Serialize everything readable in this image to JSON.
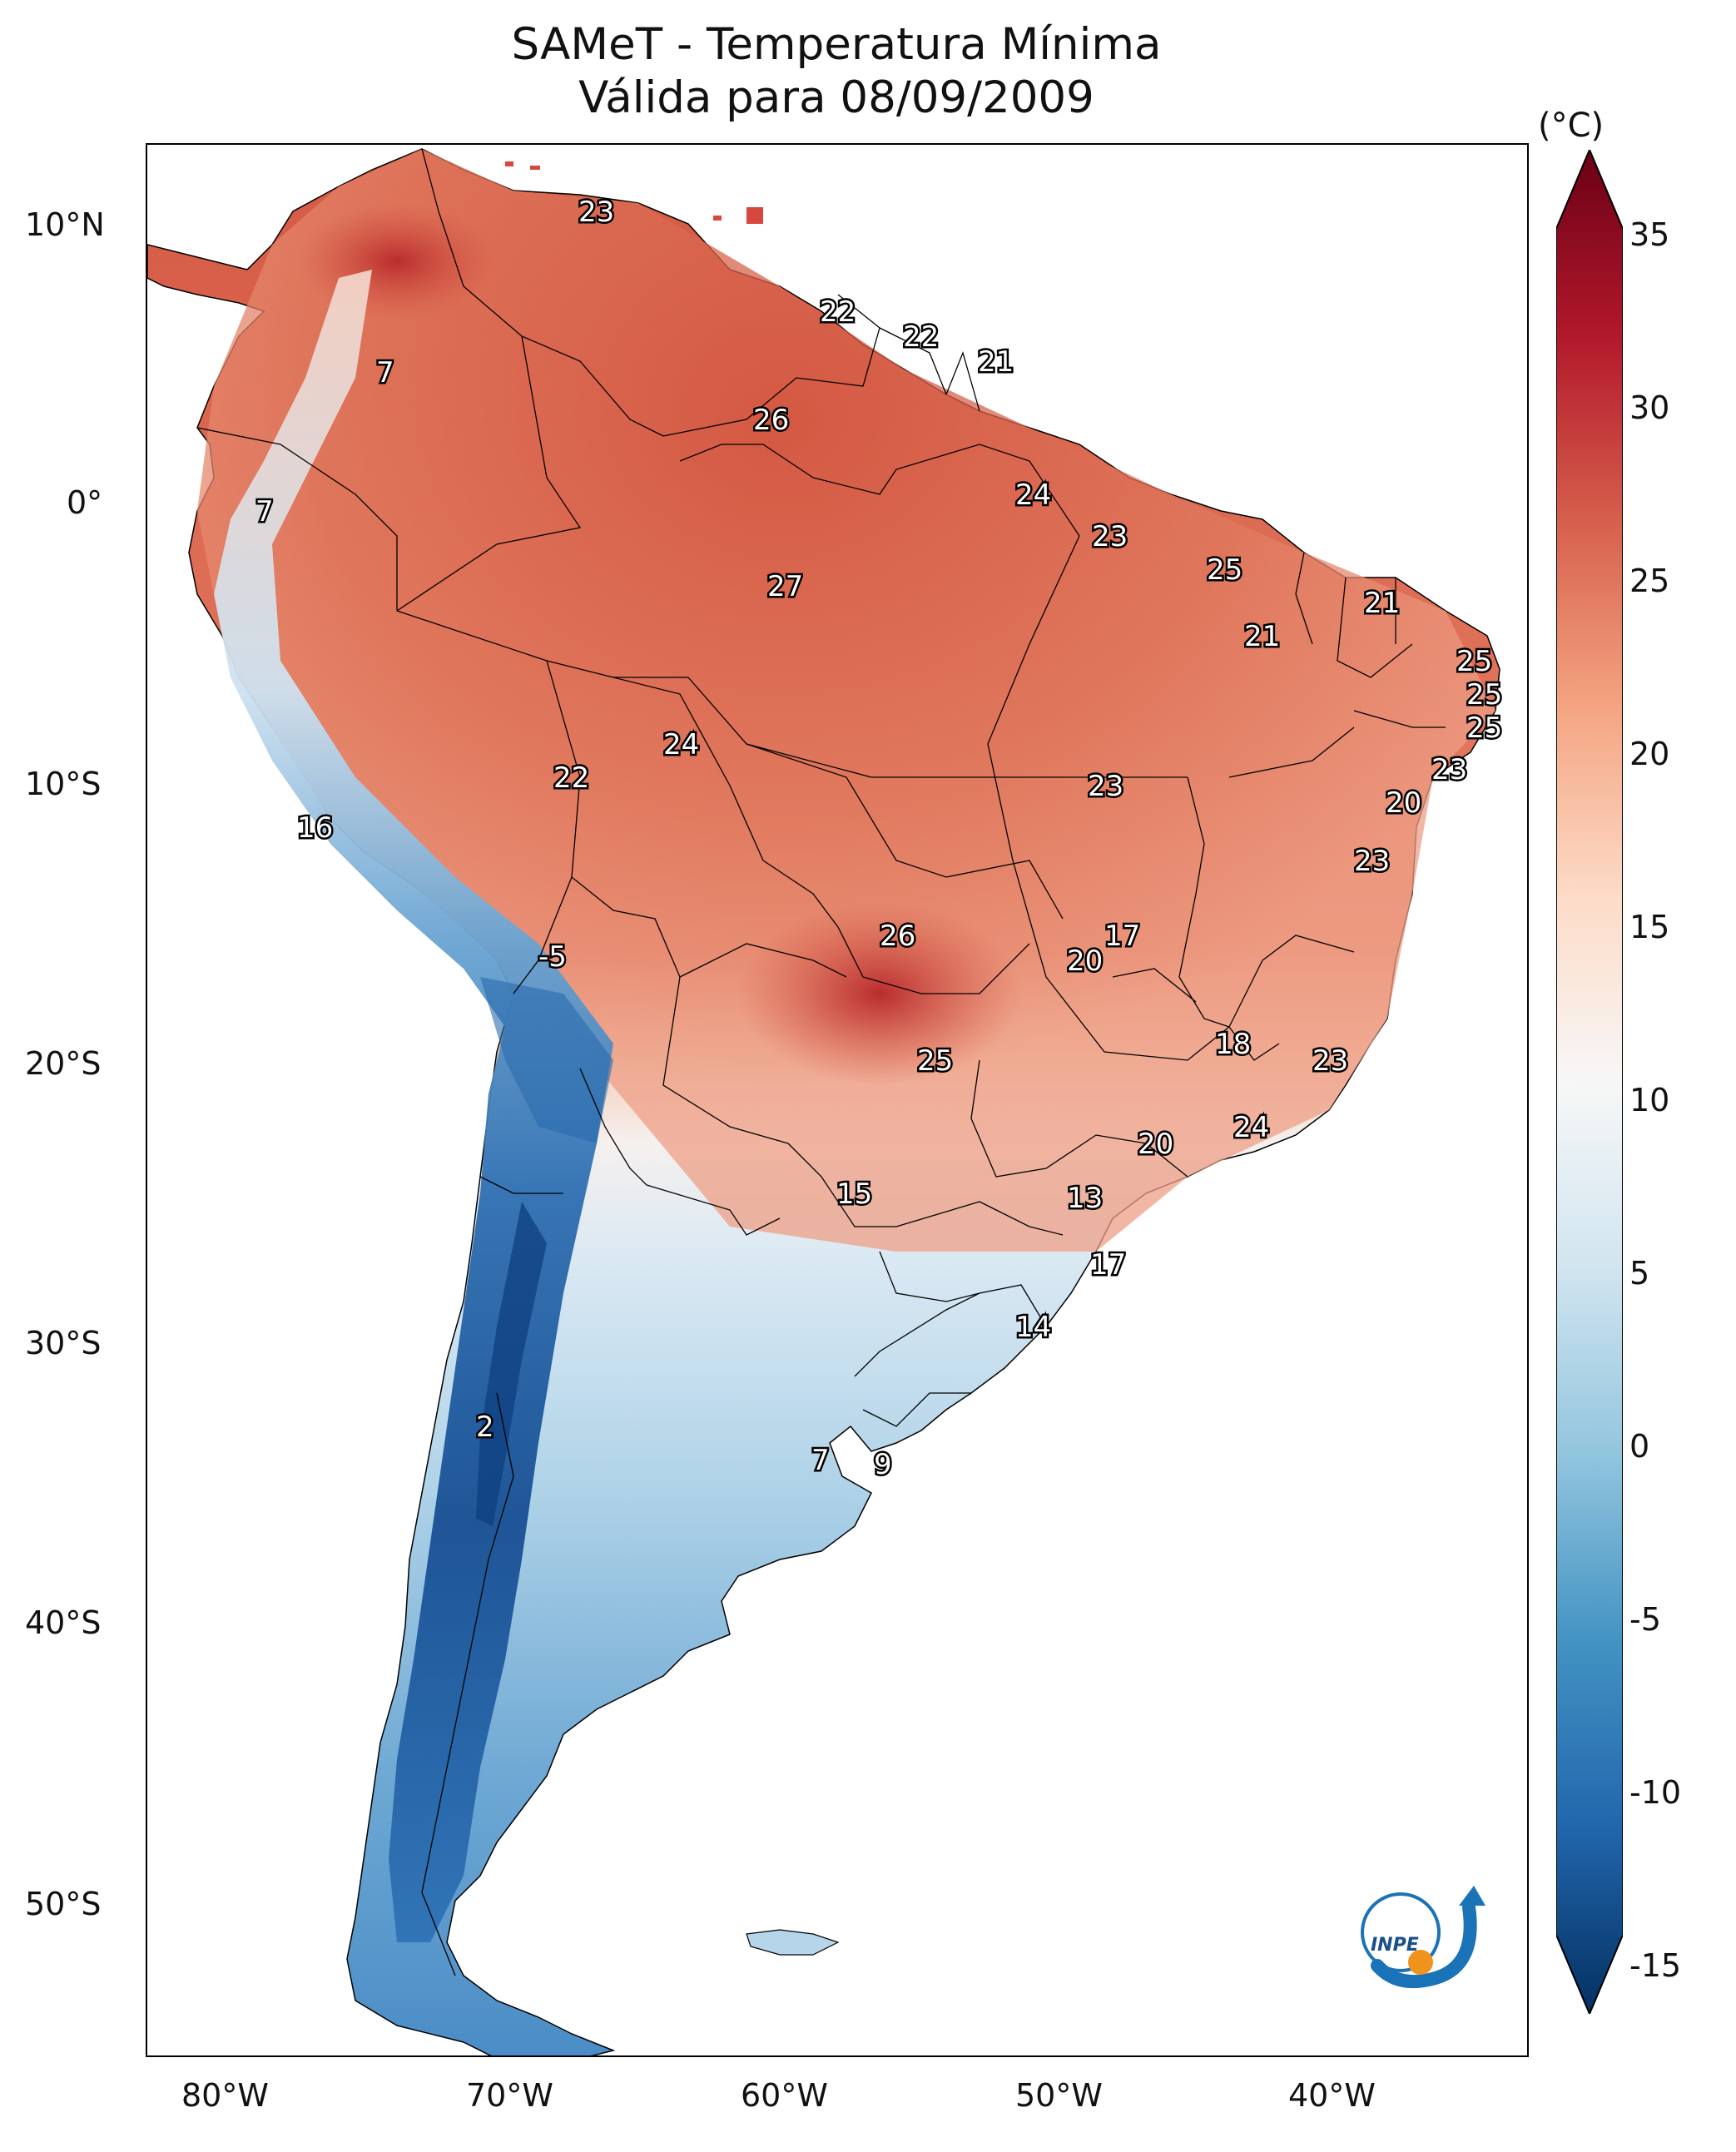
{
  "title": {
    "line1": "SAMeT - Temperatura Mínima",
    "line2": "Válida para 08/09/2009"
  },
  "axes": {
    "lat_labels": [
      "10°N",
      "0°",
      "10°S",
      "20°S",
      "30°S",
      "40°S",
      "50°S"
    ],
    "lon_labels": [
      "80°W",
      "70°W",
      "60°W",
      "50°W",
      "40°W"
    ]
  },
  "colorbar": {
    "unit": "(°C)",
    "ticks": [
      "35",
      "30",
      "25",
      "20",
      "15",
      "10",
      "5",
      "0",
      "-5",
      "-10",
      "-15"
    ],
    "min": -15,
    "max": 35,
    "colors": {
      "very_cold": "#0a3b78",
      "cold": "#3a7fc0",
      "cool": "#a9cfe6",
      "neutral": "#f6f6f6",
      "mild": "#f7c6ae",
      "warm": "#e08870",
      "hot": "#c9443a",
      "very_hot": "#6b0016"
    }
  },
  "station_values": [
    "23",
    "22",
    "22",
    "21",
    "7",
    "26",
    "7",
    "24",
    "23",
    "25",
    "27",
    "21",
    "21",
    "25",
    "25",
    "25",
    "24",
    "22",
    "23",
    "23",
    "20",
    "16",
    "23",
    "-5",
    "26",
    "17",
    "20",
    "25",
    "18",
    "23",
    "24",
    "20",
    "15",
    "13",
    "17",
    "14",
    "2",
    "7",
    "9"
  ],
  "logo": {
    "text": "INPE"
  }
}
